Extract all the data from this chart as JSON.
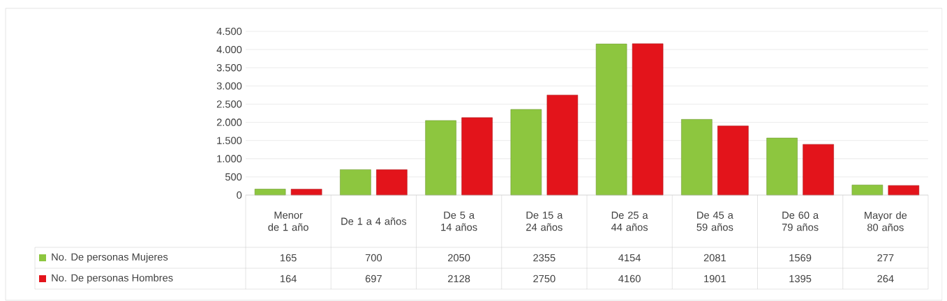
{
  "chart_data": {
    "type": "bar",
    "categories": [
      "Menor de 1 año",
      "De 1 a 4 años",
      "De 5 a 14 años",
      "De 15 a 24 años",
      "De 25 a 44 años",
      "De 45 a 59 años",
      "De 60 a 79 años",
      "Mayor de 80 años"
    ],
    "series": [
      {
        "name": "No. De personas Mujeres",
        "color": "#8dc63f",
        "values": [
          165,
          700,
          2050,
          2355,
          4154,
          2081,
          1569,
          277
        ]
      },
      {
        "name": "No. De personas Hombres",
        "color": "#e3141b",
        "values": [
          164,
          697,
          2128,
          2750,
          4160,
          1901,
          1395,
          264
        ]
      }
    ],
    "ylim": [
      0,
      4500
    ],
    "yticks": [
      0,
      500,
      {
        "value": 1000,
        "label": "1.000"
      },
      {
        "value": 1500,
        "label": "1.500"
      },
      {
        "value": 2000,
        "label": "2.000"
      },
      {
        "value": 2500,
        "label": "2.500"
      },
      {
        "value": 3000,
        "label": "3.000"
      },
      {
        "value": 3500,
        "label": "3.500"
      },
      {
        "value": 4000,
        "label": "4.000"
      },
      {
        "value": 4500,
        "label": "4.500"
      }
    ],
    "grid": "y",
    "legend": "bottom",
    "data_labels": true
  }
}
